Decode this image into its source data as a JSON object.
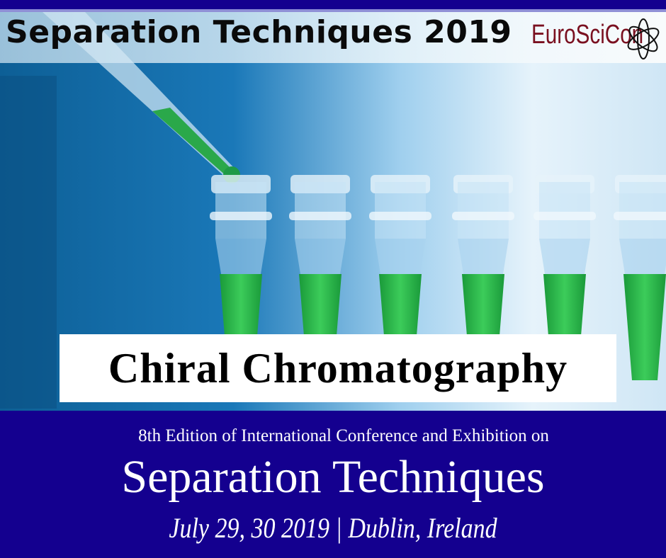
{
  "banner": {
    "title": "Separation Techniques 2019",
    "logo_text": "EuroSciCon",
    "topic": "Chiral Chromatography",
    "edition": "8th Edition of International Conference and Exhibition on",
    "heading": "Separation Techniques",
    "date_location": "July 29, 30 2019 | Dublin, Ireland"
  },
  "colors": {
    "brand_navy": "#14008f",
    "logo": "#7a1020",
    "liquid": "#2fbf4a"
  },
  "icons": {
    "logo_mark": "atom-orbit-icon"
  }
}
